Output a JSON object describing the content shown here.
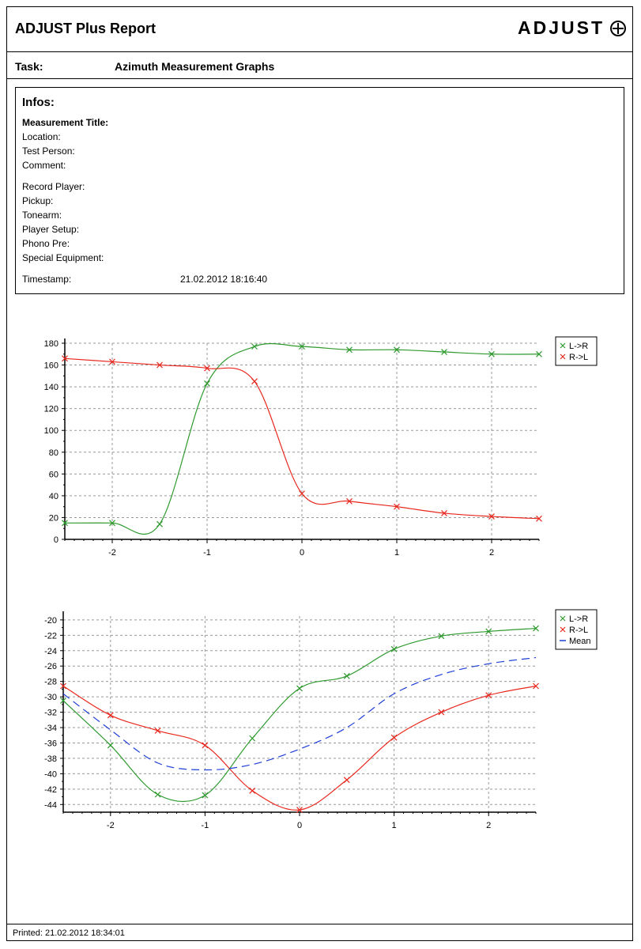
{
  "report": {
    "title": "ADJUST Plus Report",
    "logo_text": "ADJUST",
    "task_label": "Task:",
    "task_value": "Azimuth Measurement Graphs",
    "printed": "Printed: 21.02.2012 18:34:01"
  },
  "infos": {
    "title": "Infos:",
    "fields": [
      {
        "label": "Measurement Title:",
        "bold": true
      },
      {
        "label": "Location:"
      },
      {
        "label": "Test Person:"
      },
      {
        "label": "Comment:"
      },
      {
        "label": "Record Player:"
      },
      {
        "label": "Pickup:"
      },
      {
        "label": "Tonearm:"
      },
      {
        "label": "Player Setup:"
      },
      {
        "label": "Phono Pre:"
      },
      {
        "label": "Special Equipment:"
      }
    ],
    "timestamp_label": "Timestamp:",
    "timestamp_value": "21.02.2012 18:16:40"
  },
  "chart_data": [
    {
      "type": "line",
      "xlim": [
        -2.5,
        2.5
      ],
      "ylim": [
        0,
        180
      ],
      "x_ticks": [
        -2,
        -1,
        0,
        1,
        2
      ],
      "y_ticks": [
        0,
        20,
        40,
        60,
        80,
        100,
        120,
        140,
        160,
        180
      ],
      "grid": true,
      "legend": "top-right",
      "series": [
        {
          "name": "L->R",
          "color": "#2e9a2e",
          "marker": "x",
          "x": [
            -2.5,
            -2.0,
            -1.5,
            -1.0,
            -0.5,
            0.0,
            0.5,
            1.0,
            1.5,
            2.0,
            2.5
          ],
          "y": [
            15,
            15,
            14,
            143,
            177,
            177,
            174,
            174,
            172,
            170,
            170
          ]
        },
        {
          "name": "R->L",
          "color": "#e8281e",
          "marker": "x",
          "x": [
            -2.5,
            -2.0,
            -1.5,
            -1.0,
            -0.5,
            0.0,
            0.5,
            1.0,
            1.5,
            2.0,
            2.5
          ],
          "y": [
            166,
            163,
            160,
            157,
            145,
            42,
            35,
            30,
            24,
            21,
            19
          ]
        }
      ]
    },
    {
      "type": "line",
      "xlim": [
        -2.5,
        2.5
      ],
      "ylim": [
        -45,
        -19.5
      ],
      "x_ticks": [
        -2,
        -1,
        0,
        1,
        2
      ],
      "y_ticks": [
        -20,
        -22,
        -24,
        -26,
        -28,
        -30,
        -32,
        -34,
        -36,
        -38,
        -40,
        -42,
        -44
      ],
      "grid": true,
      "legend": "top-right",
      "series": [
        {
          "name": "L->R",
          "color": "#2e9a2e",
          "marker": "x",
          "x": [
            -2.5,
            -2.0,
            -1.5,
            -1.0,
            -0.5,
            0.0,
            0.5,
            1.0,
            1.5,
            2.0,
            2.5
          ],
          "y": [
            -30.5,
            -36.3,
            -42.7,
            -42.8,
            -35.4,
            -28.9,
            -27.3,
            -23.8,
            -22.1,
            -21.5,
            -21.1
          ]
        },
        {
          "name": "R->L",
          "color": "#e8281e",
          "marker": "x",
          "x": [
            -2.5,
            -2.0,
            -1.5,
            -1.0,
            -0.5,
            0.0,
            0.5,
            1.0,
            1.5,
            2.0,
            2.5
          ],
          "y": [
            -28.6,
            -32.4,
            -34.4,
            -36.3,
            -42.2,
            -44.7,
            -40.8,
            -35.3,
            -32.0,
            -29.8,
            -28.6
          ]
        },
        {
          "name": "Mean",
          "color": "#1f3fd6",
          "dashed": true,
          "x": [
            -2.5,
            -2.0,
            -1.5,
            -1.0,
            -0.5,
            0.0,
            0.5,
            1.0,
            1.5,
            2.0,
            2.5
          ],
          "y": [
            -29.6,
            -34.3,
            -38.6,
            -39.5,
            -38.8,
            -36.8,
            -34.0,
            -29.6,
            -27.1,
            -25.7,
            -24.9
          ]
        }
      ]
    }
  ]
}
